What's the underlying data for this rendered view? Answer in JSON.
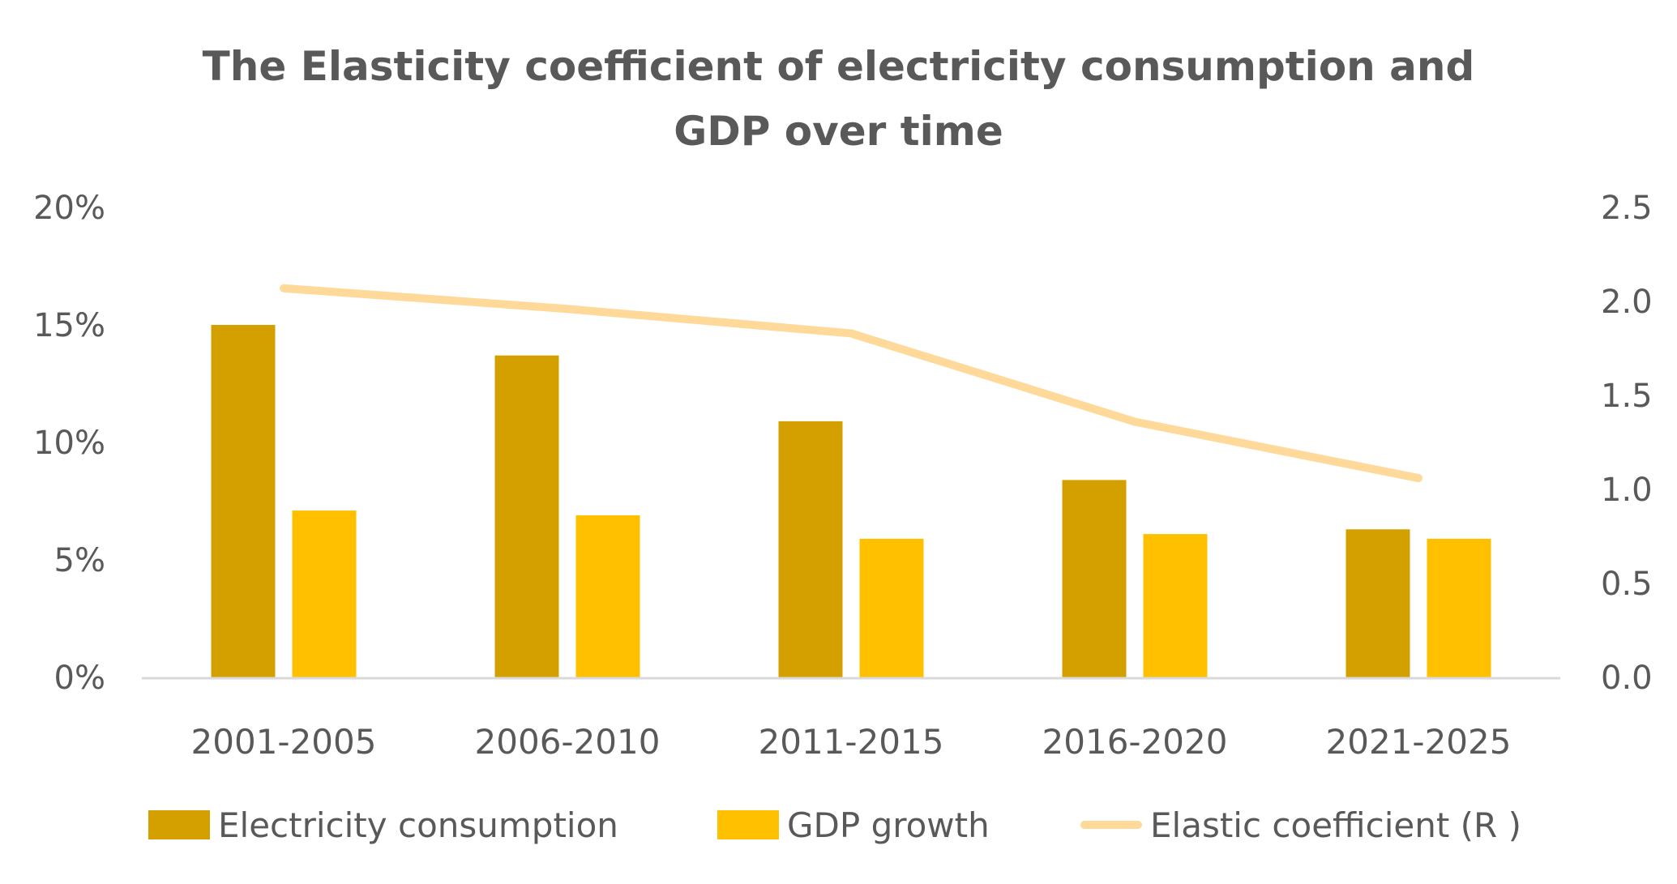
{
  "chart_data": {
    "type": "bar",
    "title": "The Elasticity coefficient of electricity consumption and GDP over time",
    "title_lines": [
      "The Elasticity coefficient of electricity consumption and",
      "GDP over time"
    ],
    "categories": [
      "2001-2005",
      "2006-2010",
      "2011-2015",
      "2016-2020",
      "2021-2025"
    ],
    "series": [
      {
        "name": "Electricity consumption",
        "type": "bar",
        "axis": "left",
        "color": "#D4A000",
        "values": [
          0.15,
          0.137,
          0.109,
          0.084,
          0.063
        ]
      },
      {
        "name": "GDP growth",
        "type": "bar",
        "axis": "left",
        "color": "#FFC000",
        "values": [
          0.071,
          0.069,
          0.059,
          0.061,
          0.059
        ]
      },
      {
        "name": "Elastic coefficient (R )",
        "type": "line",
        "axis": "right",
        "color": "#FFD99A",
        "values": [
          2.07,
          1.96,
          1.83,
          1.36,
          1.06
        ]
      }
    ],
    "y_left": {
      "min": 0,
      "max": 0.2,
      "ticks": [
        0,
        0.05,
        0.1,
        0.15,
        0.2
      ],
      "tick_labels": [
        "0%",
        "5%",
        "10%",
        "15%",
        "20%"
      ]
    },
    "y_right": {
      "min": 0,
      "max": 2.5,
      "ticks": [
        0,
        0.5,
        1.0,
        1.5,
        2.0,
        2.5
      ],
      "tick_labels": [
        "0.0",
        "0.5",
        "1.0",
        "1.5",
        "2.0",
        "2.5"
      ]
    },
    "xlabel": "",
    "ylabel": "",
    "grid": false,
    "legend_position": "bottom",
    "axis_color": "#D9D9D9"
  },
  "legend": [
    {
      "label": "Electricity consumption",
      "color": "#D4A000",
      "kind": "bar"
    },
    {
      "label": "GDP growth",
      "color": "#FFC000",
      "kind": "bar"
    },
    {
      "label": "Elastic coefficient (R )",
      "color": "#FFD99A",
      "kind": "line"
    }
  ]
}
